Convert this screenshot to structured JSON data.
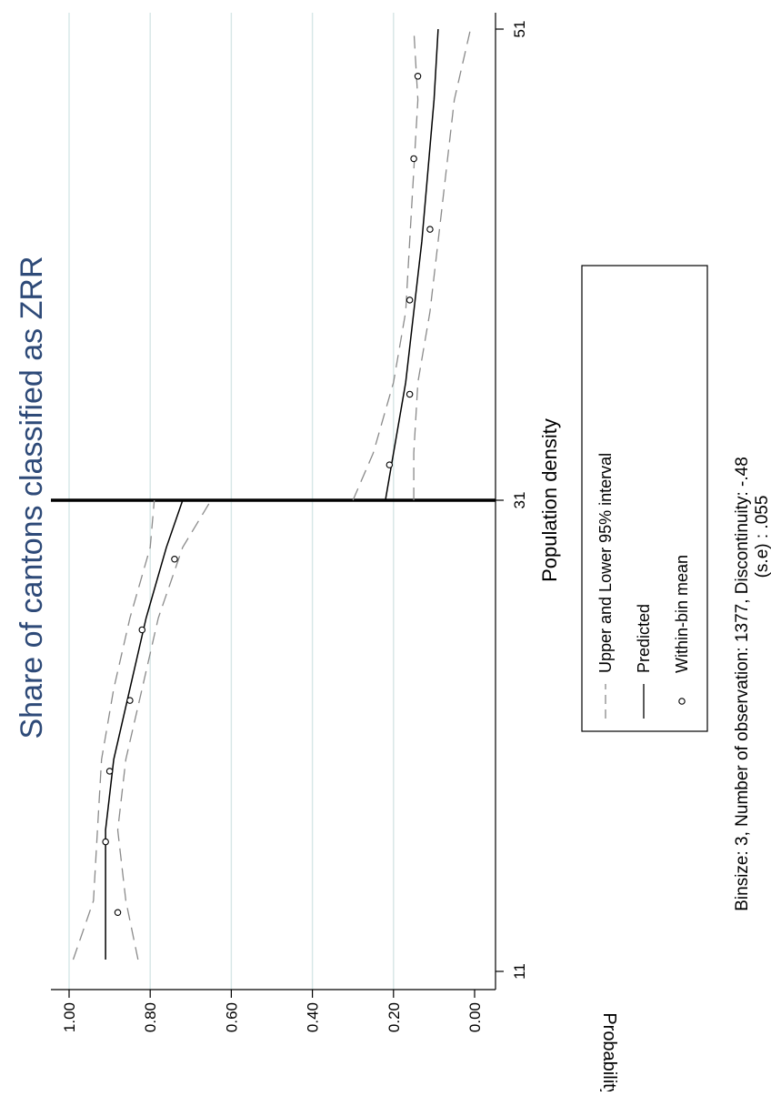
{
  "chart_data": {
    "type": "scatter",
    "title": "Share of cantons classified as ZRR",
    "xlabel": "Population density",
    "ylabel": "Probability",
    "xlim": [
      11,
      51
    ],
    "ylim": [
      0,
      1
    ],
    "x_ticks": [
      11,
      31,
      51
    ],
    "y_ticks": [
      "0.00",
      "0.20",
      "0.40",
      "0.60",
      "0.80",
      "1.00"
    ],
    "y_tick_values": [
      0,
      0.2,
      0.4,
      0.6,
      0.8,
      1.0
    ],
    "cutoff": 31,
    "grid": true,
    "rotated": true,
    "legend_position": "bottom",
    "legend": [
      {
        "label": "Upper and Lower 95% interval",
        "style": "dashed"
      },
      {
        "label": "Predicted",
        "style": "solid"
      },
      {
        "label": "Within-bin mean",
        "style": "marker"
      }
    ],
    "note_line1": "Binsize: 3, Number of observation: 1377, Discontinuity: -.48",
    "note_line2": "(s.e) :     .055",
    "series": [
      {
        "name": "Within-bin mean",
        "x": [
          13.5,
          16.5,
          19.5,
          22.5,
          25.5,
          28.5,
          32.5,
          35.5,
          39.5,
          42.5,
          45.5,
          49.0
        ],
        "y": [
          0.88,
          0.91,
          0.9,
          0.85,
          0.82,
          0.74,
          0.21,
          0.16,
          0.16,
          0.11,
          0.15,
          0.14
        ]
      },
      {
        "name": "Predicted",
        "x": [
          11.5,
          14,
          17,
          20,
          23,
          26,
          29,
          31
        ],
        "y": [
          0.91,
          0.91,
          0.91,
          0.89,
          0.85,
          0.81,
          0.76,
          0.72
        ]
      },
      {
        "name": "Predicted",
        "x": [
          31,
          33,
          36,
          39,
          42,
          45,
          48,
          51
        ],
        "y": [
          0.22,
          0.2,
          0.17,
          0.15,
          0.13,
          0.115,
          0.1,
          0.09
        ]
      },
      {
        "name": "Upper and Lower 95% interval",
        "x": [
          11.5,
          14,
          17,
          20,
          23,
          26,
          29,
          31
        ],
        "y": [
          0.99,
          0.94,
          0.93,
          0.92,
          0.89,
          0.85,
          0.8,
          0.79
        ]
      },
      {
        "name": "Upper and Lower 95% interval",
        "x": [
          11.5,
          14,
          17,
          20,
          23,
          26,
          29,
          31
        ],
        "y": [
          0.83,
          0.86,
          0.88,
          0.86,
          0.82,
          0.78,
          0.72,
          0.65
        ]
      },
      {
        "name": "Upper and Lower 95% interval",
        "x": [
          31,
          33,
          36,
          39,
          42,
          45,
          48,
          51
        ],
        "y": [
          0.3,
          0.25,
          0.2,
          0.17,
          0.16,
          0.15,
          0.14,
          0.15
        ]
      },
      {
        "name": "Upper and Lower 95% interval",
        "x": [
          31,
          33,
          36,
          39,
          42,
          45,
          48,
          51
        ],
        "y": [
          0.15,
          0.15,
          0.14,
          0.11,
          0.09,
          0.07,
          0.05,
          0.01
        ]
      }
    ]
  }
}
